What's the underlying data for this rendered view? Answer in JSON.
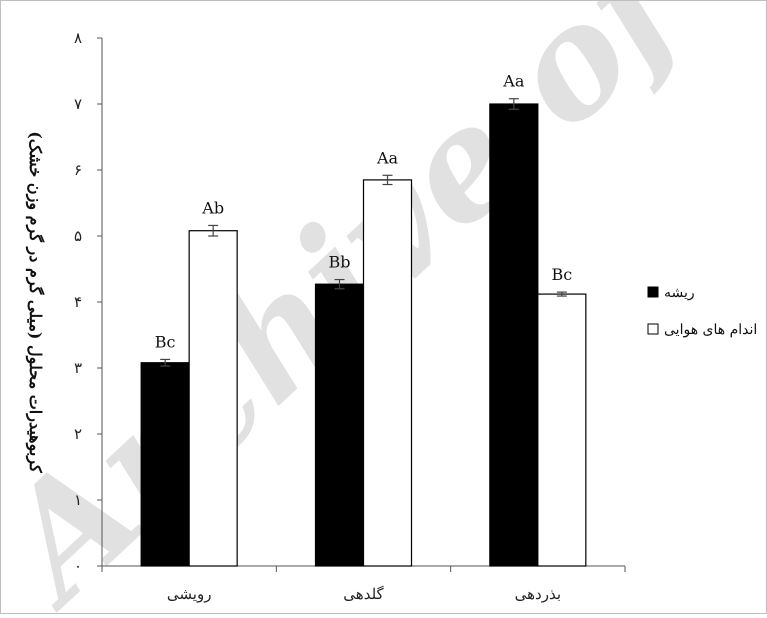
{
  "chart_data": {
    "type": "bar",
    "categories": [
      "رویشی",
      "گلدهی",
      "بذردهی"
    ],
    "ylabel": "کربوهیدرات محلول (میلی گرم در گرم وزن خشک)",
    "xlabel": "",
    "ylim": [
      0,
      8
    ],
    "ytick_values": [
      0,
      1,
      2,
      3,
      4,
      5,
      6,
      7,
      8
    ],
    "ytick_labels": [
      "۰",
      "۱",
      "۲",
      "۳",
      "۴",
      "۵",
      "۶",
      "۷",
      "۸"
    ],
    "grid": false,
    "legend_position": "right",
    "series": [
      {
        "name": "ریشه",
        "color": "#000000",
        "fill": "solid-black",
        "values": [
          3.08,
          4.27,
          7.0
        ],
        "errors": [
          0.05,
          0.07,
          0.08
        ],
        "labels": [
          "Bc",
          "Bb",
          "Aa"
        ]
      },
      {
        "name": "اندام های هوایی",
        "color": "#ffffff",
        "fill": "white-outline",
        "values": [
          5.08,
          5.85,
          4.12
        ],
        "errors": [
          0.08,
          0.07,
          0.03
        ],
        "labels": [
          "Ab",
          "Aa",
          "Bc"
        ]
      }
    ]
  },
  "watermark": {
    "text": "Archive of"
  }
}
